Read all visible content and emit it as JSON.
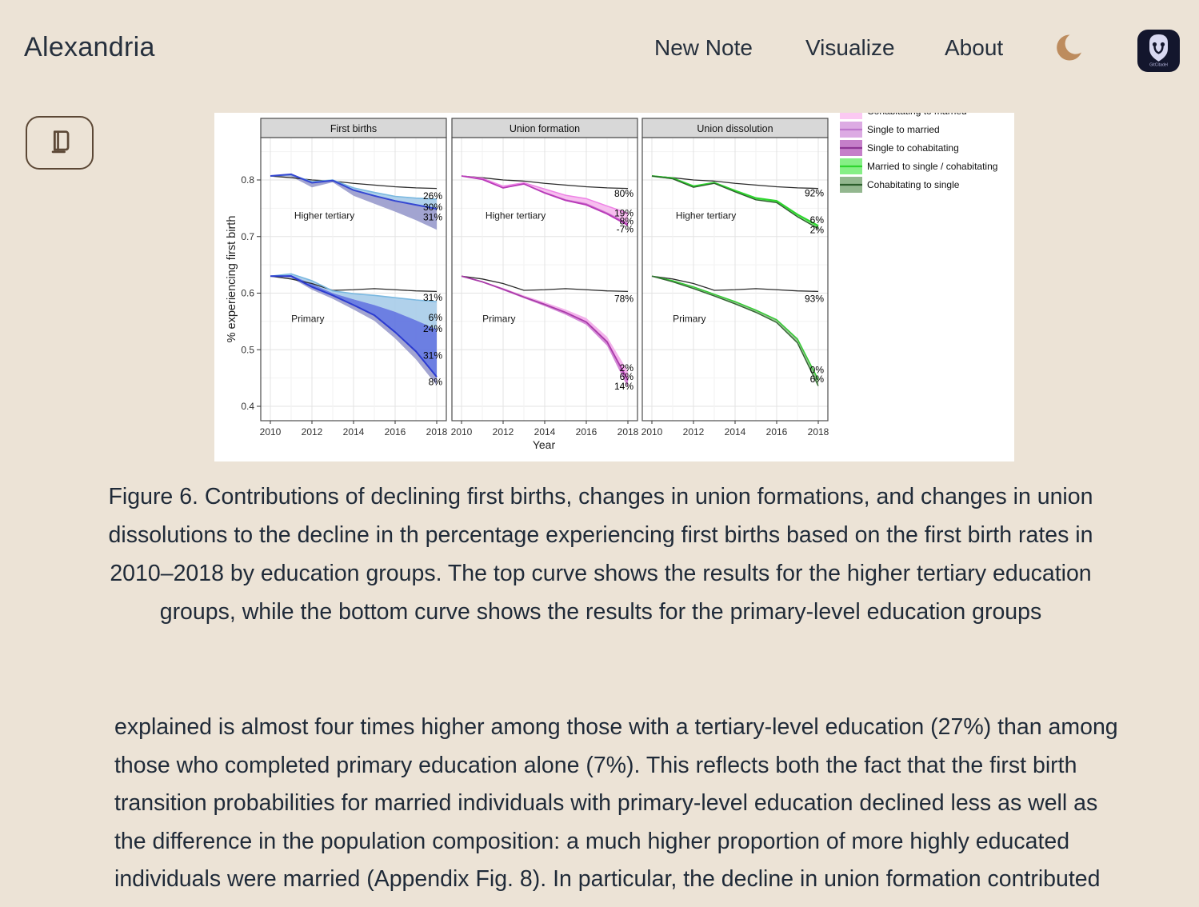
{
  "page": {
    "background": "#ece3d6"
  },
  "header": {
    "brand": "Alexandria",
    "nav": [
      {
        "label": "New Note"
      },
      {
        "label": "Visualize"
      },
      {
        "label": "About"
      }
    ],
    "moon_color": "#bd8c5e",
    "badge": {
      "text": "GitCitadel",
      "bg": "#13162d",
      "fg": "#d9d9f2"
    }
  },
  "library_button": {
    "icon": "book-icon",
    "color": "#5c4836"
  },
  "figure": {
    "caption": "Figure 6. Contributions of declining first births, changes in union formations, and changes in union dissolutions to the decline in th percentage experiencing first births based on the first birth rates in 2010–2018 by education groups. The top curve shows the results for the higher tertiary education groups, while the bottom curve shows the results for the primary-level education groups"
  },
  "body_text": {
    "paragraph": "explained is almost four times higher among those with a tertiary-level education (27%) than among those who completed primary education alone (7%). This reflects both the fact that the first birth transition probabilities for married individuals with primary-level education declined less as well as the difference in the population composition: a much higher proportion of more highly educated individuals were married (Appendix Fig. 8). In particular, the decline in union formation contributed more to the decline in first births among the"
  },
  "chart_data": {
    "type": "line",
    "x": [
      2010,
      2011,
      2012,
      2013,
      2014,
      2015,
      2016,
      2017,
      2018
    ],
    "xlabel": "Year",
    "ylabel": "% experiencing first birth",
    "ylim": [
      0.375,
      0.875
    ],
    "yticks": [
      0.8,
      0.7,
      0.6,
      0.5,
      0.4
    ],
    "yticks_minor": [
      0.85,
      0.75,
      0.65,
      0.55,
      0.45
    ],
    "xticks": [
      2010,
      2012,
      2014,
      2016,
      2018
    ],
    "grid": true,
    "legend_position": "top-right",
    "legend": [
      {
        "label": "Cohabitating to married",
        "fill": "#fbc9f2",
        "line": "#f07ddd"
      },
      {
        "label": "Single to married",
        "fill": "#dcabe3",
        "line": "#bd77cc"
      },
      {
        "label": "Single to cohabitating",
        "fill": "#c57fc9",
        "line": "#8e3694"
      },
      {
        "label": "Married to single / cohabitating",
        "fill": "#86ef86",
        "line": "#2fd42f"
      },
      {
        "label": "Cohabitating to single",
        "fill": "#93b78f",
        "line": "#2c5e2c"
      }
    ],
    "panels": [
      {
        "title": "First births",
        "groups": [
          {
            "name": "Higher tertiary",
            "name_pos": {
              "year": 2012.6,
              "value": 0.737
            },
            "reference": [
              0.807,
              0.804,
              0.8,
              0.798,
              0.794,
              0.791,
              0.788,
              0.786,
              0.785
            ],
            "ribbons": [
              {
                "upper": [
                  0.807,
                  0.809,
                  0.797,
                  0.8,
                  0.786,
                  0.778,
                  0.771,
                  0.768,
                  0.766
                ],
                "lower": [
                  0.807,
                  0.81,
                  0.795,
                  0.799,
                  0.782,
                  0.772,
                  0.763,
                  0.756,
                  0.749
                ],
                "fill": "#a9cde9"
              },
              {
                "upper": [
                  0.807,
                  0.81,
                  0.795,
                  0.799,
                  0.782,
                  0.772,
                  0.763,
                  0.756,
                  0.749
                ],
                "lower": [
                  0.807,
                  0.806,
                  0.787,
                  0.796,
                  0.772,
                  0.758,
                  0.744,
                  0.729,
                  0.712
                ],
                "fill": "#9a9ccd"
              }
            ],
            "lines": [
              {
                "values": [
                  0.807,
                  0.809,
                  0.797,
                  0.8,
                  0.786,
                  0.778,
                  0.771,
                  0.768,
                  0.766
                ],
                "color": "#7ab8e0",
                "width": 1.6
              },
              {
                "values": [
                  0.807,
                  0.81,
                  0.795,
                  0.799,
                  0.782,
                  0.772,
                  0.763,
                  0.756,
                  0.749
                ],
                "color": "#3547d2",
                "width": 2
              }
            ],
            "labels": [
              {
                "text": "26%",
                "value": 0.772
              },
              {
                "text": "30%",
                "value": 0.752
              },
              {
                "text": "31%",
                "value": 0.734
              }
            ]
          },
          {
            "name": "Primary",
            "name_pos": {
              "year": 2011.8,
              "value": 0.555
            },
            "reference": [
              0.63,
              0.625,
              0.617,
              0.605,
              0.606,
              0.608,
              0.606,
              0.604,
              0.603
            ],
            "ribbons": [
              {
                "upper": [
                  0.63,
                  0.634,
                  0.622,
                  0.604,
                  0.599,
                  0.596,
                  0.592,
                  0.588,
                  0.585
                ],
                "lower": [
                  0.63,
                  0.632,
                  0.616,
                  0.6,
                  0.589,
                  0.579,
                  0.567,
                  0.552,
                  0.536
                ],
                "fill": "#a9cde9"
              },
              {
                "upper": [
                  0.63,
                  0.632,
                  0.616,
                  0.6,
                  0.589,
                  0.579,
                  0.567,
                  0.552,
                  0.536
                ],
                "lower": [
                  0.63,
                  0.63,
                  0.611,
                  0.596,
                  0.579,
                  0.561,
                  0.531,
                  0.497,
                  0.452
                ],
                "fill": "#5f74e0"
              },
              {
                "upper": [
                  0.63,
                  0.63,
                  0.611,
                  0.596,
                  0.579,
                  0.561,
                  0.531,
                  0.497,
                  0.452
                ],
                "lower": [
                  0.63,
                  0.627,
                  0.606,
                  0.59,
                  0.571,
                  0.551,
                  0.52,
                  0.483,
                  0.437
                ],
                "fill": "#9a9ccd"
              }
            ],
            "lines": [
              {
                "values": [
                  0.63,
                  0.634,
                  0.622,
                  0.604,
                  0.599,
                  0.596,
                  0.592,
                  0.588,
                  0.585
                ],
                "color": "#7ab8e0",
                "width": 1.6
              },
              {
                "values": [
                  0.63,
                  0.63,
                  0.611,
                  0.596,
                  0.579,
                  0.561,
                  0.531,
                  0.497,
                  0.452
                ],
                "color": "#2b3bd0",
                "width": 2
              }
            ],
            "labels": [
              {
                "text": "31%",
                "value": 0.592
              },
              {
                "text": "6%",
                "value": 0.557
              },
              {
                "text": "24%",
                "value": 0.537
              },
              {
                "text": "31%",
                "value": 0.49
              },
              {
                "text": "8%",
                "value": 0.443
              }
            ]
          }
        ]
      },
      {
        "title": "Union formation",
        "groups": [
          {
            "name": "Higher tertiary",
            "name_pos": {
              "year": 2012.6,
              "value": 0.737
            },
            "reference": [
              0.807,
              0.804,
              0.8,
              0.798,
              0.794,
              0.791,
              0.788,
              0.786,
              0.785
            ],
            "ribbons": [
              {
                "upper": [
                  0.807,
                  0.803,
                  0.789,
                  0.795,
                  0.784,
                  0.773,
                  0.767,
                  0.754,
                  0.741
                ],
                "lower": [
                  0.807,
                  0.802,
                  0.787,
                  0.794,
                  0.779,
                  0.766,
                  0.759,
                  0.743,
                  0.724
                ],
                "fill": "#f6b8ee"
              },
              {
                "upper": [
                  0.807,
                  0.802,
                  0.787,
                  0.794,
                  0.779,
                  0.766,
                  0.759,
                  0.743,
                  0.724
                ],
                "lower": [
                  0.807,
                  0.801,
                  0.786,
                  0.793,
                  0.777,
                  0.764,
                  0.756,
                  0.74,
                  0.72
                ],
                "fill": "#cc66cc"
              }
            ],
            "lines": [
              {
                "values": [
                  0.807,
                  0.803,
                  0.789,
                  0.795,
                  0.784,
                  0.773,
                  0.767,
                  0.754,
                  0.741
                ],
                "color": "#ee82e6",
                "width": 1.5
              },
              {
                "values": [
                  0.807,
                  0.801,
                  0.786,
                  0.793,
                  0.777,
                  0.764,
                  0.756,
                  0.74,
                  0.72
                ],
                "color": "#b83ab8",
                "width": 1.8
              }
            ],
            "labels": [
              {
                "text": "80%",
                "value": 0.776
              },
              {
                "text": "19%",
                "value": 0.741
              },
              {
                "text": "8%",
                "value": 0.727
              },
              {
                "text": "-7%",
                "value": 0.713
              }
            ]
          },
          {
            "name": "Primary",
            "name_pos": {
              "year": 2011.8,
              "value": 0.555
            },
            "reference": [
              0.63,
              0.625,
              0.617,
              0.605,
              0.606,
              0.608,
              0.606,
              0.604,
              0.603
            ],
            "ribbons": [
              {
                "upper": [
                  0.63,
                  0.621,
                  0.609,
                  0.596,
                  0.584,
                  0.571,
                  0.556,
                  0.523,
                  0.462
                ],
                "lower": [
                  0.63,
                  0.62,
                  0.607,
                  0.593,
                  0.58,
                  0.566,
                  0.549,
                  0.514,
                  0.446
                ],
                "fill": "#f2abe9"
              },
              {
                "upper": [
                  0.63,
                  0.62,
                  0.607,
                  0.593,
                  0.58,
                  0.566,
                  0.549,
                  0.514,
                  0.446
                ],
                "lower": [
                  0.63,
                  0.619,
                  0.605,
                  0.591,
                  0.577,
                  0.562,
                  0.544,
                  0.507,
                  0.433
                ],
                "fill": "#cf7fd2"
              }
            ],
            "lines": [
              {
                "values": [
                  0.63,
                  0.62,
                  0.607,
                  0.593,
                  0.58,
                  0.566,
                  0.549,
                  0.514,
                  0.446
                ],
                "color": "#a93ba9",
                "width": 1.8
              }
            ],
            "labels": [
              {
                "text": "78%",
                "value": 0.59
              },
              {
                "text": "2%",
                "value": 0.468
              },
              {
                "text": "6%",
                "value": 0.452
              },
              {
                "text": "14%",
                "value": 0.435
              }
            ]
          }
        ]
      },
      {
        "title": "Union dissolution",
        "groups": [
          {
            "name": "Higher tertiary",
            "name_pos": {
              "year": 2012.6,
              "value": 0.737
            },
            "reference": [
              0.807,
              0.804,
              0.8,
              0.798,
              0.794,
              0.791,
              0.788,
              0.786,
              0.785
            ],
            "ribbons": [
              {
                "upper": [
                  0.807,
                  0.803,
                  0.789,
                  0.795,
                  0.781,
                  0.768,
                  0.763,
                  0.739,
                  0.719
                ],
                "lower": [
                  0.807,
                  0.802,
                  0.787,
                  0.794,
                  0.779,
                  0.765,
                  0.76,
                  0.735,
                  0.714
                ],
                "fill": "#7ee87e"
              }
            ],
            "lines": [
              {
                "values": [
                  0.807,
                  0.803,
                  0.789,
                  0.795,
                  0.781,
                  0.768,
                  0.763,
                  0.739,
                  0.719
                ],
                "color": "#2ed52e",
                "width": 2.2
              },
              {
                "values": [
                  0.807,
                  0.802,
                  0.787,
                  0.794,
                  0.779,
                  0.765,
                  0.76,
                  0.735,
                  0.714
                ],
                "color": "#2c5e2c",
                "width": 1.4
              }
            ],
            "labels": [
              {
                "text": "92%",
                "value": 0.777
              },
              {
                "text": "6%",
                "value": 0.729
              },
              {
                "text": "2%",
                "value": 0.712
              }
            ]
          },
          {
            "name": "Primary",
            "name_pos": {
              "year": 2011.8,
              "value": 0.555
            },
            "reference": [
              0.63,
              0.625,
              0.617,
              0.605,
              0.606,
              0.608,
              0.606,
              0.604,
              0.603
            ],
            "ribbons": [
              {
                "upper": [
                  0.63,
                  0.622,
                  0.611,
                  0.598,
                  0.585,
                  0.57,
                  0.553,
                  0.519,
                  0.447
                ],
                "lower": [
                  0.63,
                  0.62,
                  0.608,
                  0.595,
                  0.581,
                  0.566,
                  0.548,
                  0.512,
                  0.436
                ],
                "fill": "#8fbc8a"
              }
            ],
            "lines": [
              {
                "values": [
                  0.63,
                  0.622,
                  0.611,
                  0.598,
                  0.585,
                  0.57,
                  0.553,
                  0.519,
                  0.447
                ],
                "color": "#33cc33",
                "width": 1.5
              },
              {
                "values": [
                  0.63,
                  0.62,
                  0.608,
                  0.595,
                  0.581,
                  0.566,
                  0.548,
                  0.512,
                  0.436
                ],
                "color": "#336633",
                "width": 1.4
              }
            ],
            "labels": [
              {
                "text": "93%",
                "value": 0.59
              },
              {
                "text": "0%",
                "value": 0.464
              },
              {
                "text": "6%",
                "value": 0.448
              }
            ]
          }
        ]
      }
    ]
  }
}
